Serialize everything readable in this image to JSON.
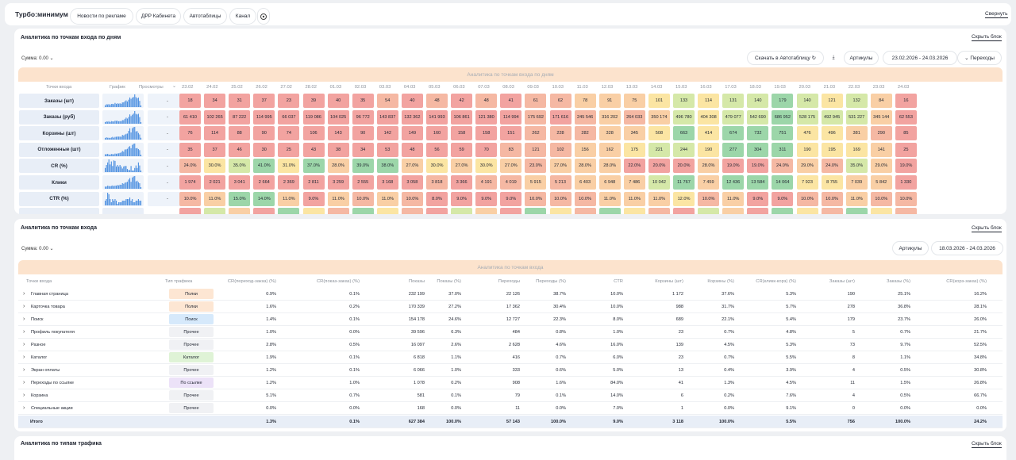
{
  "topbar": {
    "title": "Турбо:минимум",
    "tabs": [
      "Новости по рекламе",
      "ДРР Кабинета",
      "Автотаблицы",
      "Канал"
    ],
    "collapse": "Свернуть"
  },
  "block1": {
    "title": "Аналитика по точкам входа по дням",
    "hide": "Скрыть блок",
    "sum": "Сумма: 0.00",
    "download": "Скачать в Автотаблицу",
    "articles": "Артикулы",
    "range": "23.02.2026 - 24.03.2026",
    "transitions": "Переходы",
    "band": "Аналитика по точкам входа по дням",
    "h_label": "Точки входа",
    "h_chart": "График",
    "h_views": "Просмотры",
    "dates": [
      "23.02",
      "24.02",
      "25.02",
      "26.02",
      "27.02",
      "28.02",
      "01.03",
      "02.03",
      "03.03",
      "04.03",
      "05.03",
      "06.03",
      "07.03",
      "08.03",
      "09.03",
      "10.03",
      "11.03",
      "12.03",
      "13.03",
      "14.03",
      "15.03",
      "16.03",
      "17.03",
      "18.03",
      "19.03",
      "20.03",
      "21.03",
      "22.03",
      "23.03",
      "24.03"
    ],
    "rows": [
      {
        "label": "Заказы (шт)",
        "views": "-",
        "values": [
          "18",
          "34",
          "31",
          "37",
          "23",
          "39",
          "40",
          "35",
          "54",
          "40",
          "48",
          "42",
          "48",
          "41",
          "61",
          "62",
          "78",
          "91",
          "75",
          "101",
          "133",
          "114",
          "131",
          "140",
          "179",
          "140",
          "121",
          "132",
          "84",
          "16"
        ]
      },
      {
        "label": "Заказы (руб)",
        "views": "-",
        "values": [
          "61 410",
          "102 265",
          "87 222",
          "114 995",
          "66 037",
          "119 086",
          "104 025",
          "96 772",
          "143 837",
          "132 362",
          "141 993",
          "106 861",
          "121 380",
          "114 994",
          "175 692",
          "171 616",
          "245 546",
          "316 202",
          "264 033",
          "350 174",
          "496 780",
          "404 308",
          "479 077",
          "542 690",
          "686 952",
          "528 175",
          "492 945",
          "531 227",
          "345 144",
          "62 553"
        ]
      },
      {
        "label": "Корзины (шт)",
        "views": "-",
        "values": [
          "76",
          "114",
          "88",
          "90",
          "74",
          "106",
          "143",
          "90",
          "142",
          "149",
          "160",
          "158",
          "158",
          "151",
          "262",
          "228",
          "282",
          "328",
          "345",
          "508",
          "663",
          "414",
          "674",
          "732",
          "751",
          "476",
          "496",
          "381",
          "290",
          "85"
        ]
      },
      {
        "label": "Отложенные (шт)",
        "views": "-",
        "values": [
          "35",
          "37",
          "46",
          "30",
          "25",
          "43",
          "38",
          "34",
          "53",
          "48",
          "56",
          "59",
          "70",
          "83",
          "121",
          "102",
          "156",
          "162",
          "175",
          "221",
          "244",
          "190",
          "277",
          "304",
          "311",
          "190",
          "195",
          "169",
          "141",
          "25"
        ]
      },
      {
        "label": "CR (%)",
        "views": "-",
        "values": [
          "24.0%",
          "30.0%",
          "35.0%",
          "41.0%",
          "31.0%",
          "37.0%",
          "28.0%",
          "39.0%",
          "38.0%",
          "27.0%",
          "30.0%",
          "27.0%",
          "30.0%",
          "27.0%",
          "23.0%",
          "27.0%",
          "28.0%",
          "28.0%",
          "22.0%",
          "20.0%",
          "20.0%",
          "28.0%",
          "19.0%",
          "19.0%",
          "24.0%",
          "29.0%",
          "24.0%",
          "35.0%",
          "29.0%",
          "19.0%"
        ]
      },
      {
        "label": "Клики",
        "views": "-",
        "values": [
          "1 974",
          "2 021",
          "3 041",
          "2 664",
          "2 369",
          "2 811",
          "3 259",
          "2 555",
          "3 168",
          "3 058",
          "3 818",
          "3 366",
          "4 191",
          "4 019",
          "5 915",
          "5 213",
          "6 403",
          "6 948",
          "7 486",
          "10 042",
          "11 767",
          "7 459",
          "12 436",
          "13 584",
          "14 064",
          "7 923",
          "8 755",
          "7 039",
          "5 842",
          "1 330"
        ]
      },
      {
        "label": "CTR (%)",
        "views": "-",
        "values": [
          "10.0%",
          "11.0%",
          "15.0%",
          "14.0%",
          "11.0%",
          "9.0%",
          "11.0%",
          "10.0%",
          "11.0%",
          "10.0%",
          "8.0%",
          "9.0%",
          "9.0%",
          "9.0%",
          "10.0%",
          "10.0%",
          "10.0%",
          "11.0%",
          "11.0%",
          "11.0%",
          "12.0%",
          "10.0%",
          "11.0%",
          "9.0%",
          "9.0%",
          "10.0%",
          "10.0%",
          "11.0%",
          "10.0%",
          "10.0%"
        ]
      }
    ]
  },
  "block2": {
    "title": "Аналитика по точкам входа",
    "hide": "Скрыть блок",
    "sum": "Сумма: 0.00",
    "articles": "Артикулы",
    "range": "18.03.2026 - 24.03.2026",
    "band": "Аналитика по точкам входа",
    "headers": [
      "Точки входа",
      "Тип трафика",
      "CR(переход-заказ) (%)",
      "CR(показ-заказ) (%)",
      "Показы",
      "Показы (%)",
      "Переходы",
      "Переходы (%)",
      "CTR",
      "Корзины (шт)",
      "Корзины (%)",
      "CR(кликк-корз) (%)",
      "Заказы (шт)",
      "Заказы (%)",
      "CR(корз-заказ) (%)"
    ],
    "rows": [
      {
        "name": "Главная страница",
        "type": "Полки",
        "tc": "#fde6d3",
        "v": [
          "0.9%",
          "0.1%",
          "232 199",
          "37.0%",
          "22 126",
          "38.7%",
          "10.0%",
          "1 172",
          "37.6%",
          "5.3%",
          "190",
          "25.1%",
          "16.2%"
        ]
      },
      {
        "name": "Карточка товара",
        "type": "Полки",
        "tc": "#fde6d3",
        "v": [
          "1.6%",
          "0.2%",
          "170 339",
          "27.2%",
          "17 362",
          "30.4%",
          "10.0%",
          "988",
          "31.7%",
          "5.7%",
          "278",
          "36.8%",
          "28.1%"
        ]
      },
      {
        "name": "Поиск",
        "type": "Поиск",
        "tc": "#d6e9fb",
        "v": [
          "1.4%",
          "0.1%",
          "154 178",
          "24.6%",
          "12 727",
          "22.3%",
          "8.0%",
          "689",
          "22.1%",
          "5.4%",
          "179",
          "23.7%",
          "26.0%"
        ]
      },
      {
        "name": "Профиль покупателя",
        "type": "Прочее",
        "tc": "#f0f1f4",
        "v": [
          "1.0%",
          "0.0%",
          "39 596",
          "6.3%",
          "484",
          "0.8%",
          "1.0%",
          "23",
          "0.7%",
          "4.8%",
          "5",
          "0.7%",
          "21.7%"
        ]
      },
      {
        "name": "Разное",
        "type": "Прочее",
        "tc": "#f0f1f4",
        "v": [
          "2.8%",
          "0.5%",
          "16 097",
          "2.6%",
          "2 628",
          "4.6%",
          "16.0%",
          "139",
          "4.5%",
          "5.3%",
          "73",
          "9.7%",
          "52.5%"
        ]
      },
      {
        "name": "Каталог",
        "type": "Каталог",
        "tc": "#dff3d6",
        "v": [
          "1.9%",
          "0.1%",
          "6 818",
          "1.1%",
          "416",
          "0.7%",
          "6.0%",
          "23",
          "0.7%",
          "5.5%",
          "8",
          "1.1%",
          "34.8%"
        ]
      },
      {
        "name": "Экран оплаты",
        "type": "Прочее",
        "tc": "#f0f1f4",
        "v": [
          "1.2%",
          "0.1%",
          "6 066",
          "1.0%",
          "333",
          "0.6%",
          "5.0%",
          "13",
          "0.4%",
          "3.9%",
          "4",
          "0.5%",
          "30.8%"
        ]
      },
      {
        "name": "Переходы по ссылке",
        "type": "По ссылке",
        "tc": "#ece2f8",
        "v": [
          "1.2%",
          "1.0%",
          "1 078",
          "0.2%",
          "908",
          "1.6%",
          "84.0%",
          "41",
          "1.3%",
          "4.5%",
          "11",
          "1.5%",
          "26.8%"
        ]
      },
      {
        "name": "Корзина",
        "type": "Прочее",
        "tc": "#f0f1f4",
        "v": [
          "5.1%",
          "0.7%",
          "581",
          "0.1%",
          "79",
          "0.1%",
          "14.0%",
          "6",
          "0.2%",
          "7.6%",
          "4",
          "0.5%",
          "66.7%"
        ]
      },
      {
        "name": "Специальные акции",
        "type": "Прочее",
        "tc": "#f0f1f4",
        "v": [
          "0.0%",
          "0.0%",
          "168",
          "0.0%",
          "11",
          "0.0%",
          "7.0%",
          "1",
          "0.0%",
          "9.1%",
          "0",
          "0.0%",
          "0.0%"
        ]
      }
    ],
    "total": {
      "name": "Итого",
      "v": [
        "1.3%",
        "0.1%",
        "627 384",
        "100.0%",
        "57 143",
        "100.0%",
        "9.0%",
        "3 118",
        "100.0%",
        "5.5%",
        "756",
        "100.0%",
        "24.2%"
      ]
    }
  },
  "block3": {
    "title": "Аналитика по типам трафика",
    "hide": "Скрыть блок"
  },
  "colors": {
    "red": "#f2a3a0",
    "salmon": "#f5b8a3",
    "orange": "#f9cfa5",
    "yellow": "#fbe5a3",
    "lime": "#d5e8a8",
    "green": "#9cd6a9",
    "band": "#fce3cd"
  },
  "icons": {
    "settings": "gear-icon",
    "refresh": "refresh-icon",
    "download": "download-icon",
    "expand": "chevron-right-icon",
    "caret": "chevron-down-icon"
  }
}
